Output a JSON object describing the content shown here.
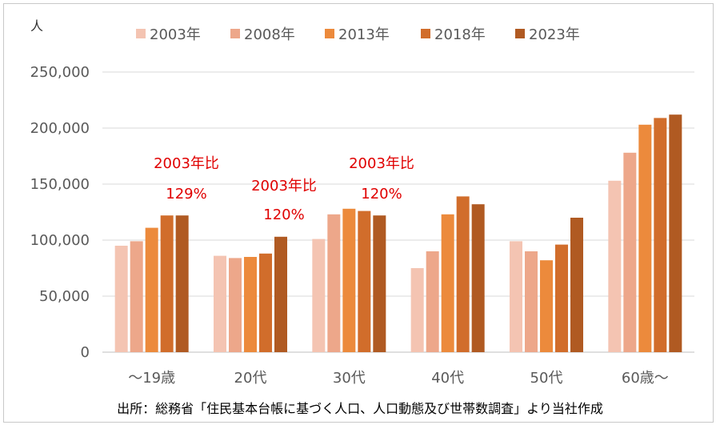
{
  "chart_data": {
    "type": "bar",
    "unit_label": "人",
    "categories": [
      "～19歳",
      "20代",
      "30代",
      "40代",
      "50代",
      "60歳～"
    ],
    "series": [
      {
        "name": "2003年",
        "color": "#f4c4b2",
        "values": [
          95000,
          86000,
          101000,
          75000,
          99000,
          153000
        ]
      },
      {
        "name": "2008年",
        "color": "#eda78a",
        "values": [
          99000,
          84000,
          123000,
          90000,
          90000,
          178000
        ]
      },
      {
        "name": "2013年",
        "color": "#ec8a3c",
        "values": [
          111000,
          85000,
          128000,
          123000,
          82000,
          203000
        ]
      },
      {
        "name": "2018年",
        "color": "#d16d2b",
        "values": [
          122000,
          88000,
          126000,
          139000,
          96000,
          209000
        ]
      },
      {
        "name": "2023年",
        "color": "#b05a22",
        "values": [
          122000,
          103000,
          122000,
          132000,
          120000,
          212000
        ]
      }
    ],
    "y_ticks": [
      "0",
      "50,000",
      "100,000",
      "150,000",
      "200,000",
      "250,000"
    ],
    "ylim": [
      0,
      250000
    ],
    "grid": true,
    "legend_position": "top",
    "annotations": [
      {
        "category": "～19歳",
        "line1": "2003年比",
        "line2": "129%"
      },
      {
        "category": "20代",
        "line1": "2003年比",
        "line2": "120%"
      },
      {
        "category": "30代",
        "line1": "2003年比",
        "line2": "120%"
      }
    ]
  },
  "source_note": "出所：総務省「住民基本台帳に基づく人口、人口動態及び世帯数調査」より当社作成"
}
